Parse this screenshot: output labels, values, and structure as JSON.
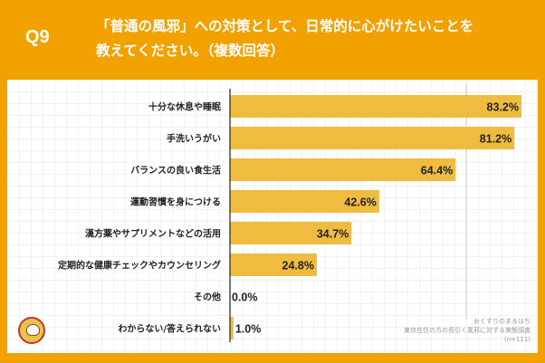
{
  "header": {
    "question_no": "Q9",
    "title_line1": "「普通の風邪」への対策として、日常的に心がけたいことを",
    "title_line2": "教えてください。（複数回答）"
  },
  "footnote": {
    "line1": "おくすりのまるはち",
    "line2": "東京在住の方の長引く風邪に対する実態調査",
    "line3": "(n=111)"
  },
  "logo": {
    "text": "まるはち"
  },
  "colors": {
    "frame": "#f2a200",
    "bar": "#f0bc3f",
    "text": "#222222"
  },
  "chart_data": {
    "type": "bar",
    "orientation": "horizontal",
    "categories": [
      "十分な休息や睡眠",
      "手洗いうがい",
      "バランスの良い食生活",
      "運動習慣を身につける",
      "漢方薬やサプリメントなどの活用",
      "定期的な健康チェックやカウンセリング",
      "その他",
      "わからない/答えられない"
    ],
    "values": [
      83.2,
      81.2,
      64.4,
      42.6,
      34.7,
      24.8,
      0.0,
      1.0
    ],
    "labels": [
      "83.2%",
      "81.2%",
      "64.4%",
      "42.6%",
      "34.7%",
      "24.8%",
      "0.0%",
      "1.0%"
    ],
    "unit": "%",
    "xlim": [
      0,
      83.2
    ],
    "grid": false
  }
}
